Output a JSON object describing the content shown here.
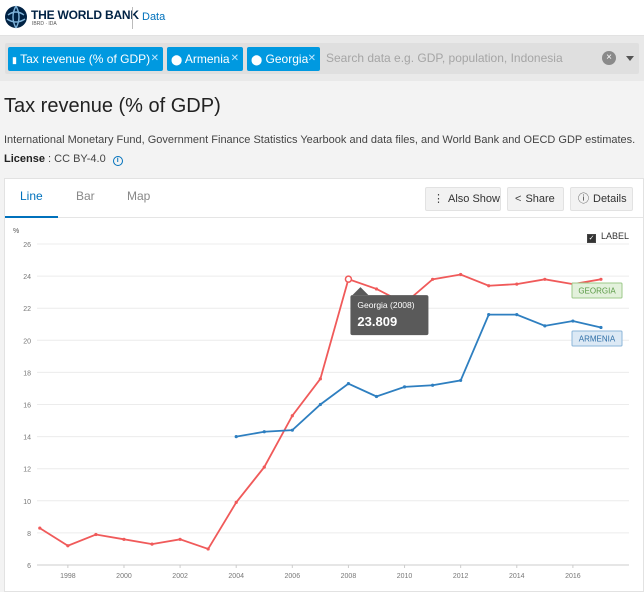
{
  "header": {
    "brand": "THE WORLD BANK",
    "brand_sub": "IBRD · IDA",
    "data_link": "Data"
  },
  "filters": {
    "chips": [
      {
        "icon": "bar-chart-icon",
        "label": "Tax revenue (% of GDP)"
      },
      {
        "icon": "location-pin-icon",
        "label": "Armenia"
      },
      {
        "icon": "location-pin-icon",
        "label": "Georgia"
      }
    ],
    "search_placeholder": "Search data e.g. GDP, population, Indonesia",
    "clear": "×"
  },
  "page": {
    "title": "Tax revenue (% of GDP)",
    "source": "International Monetary Fund, Government Finance Statistics Yearbook and data files, and World Bank and OECD GDP estimates.",
    "license_label": "License",
    "license_value": ": CC BY-4.0"
  },
  "tabs": [
    "Line",
    "Bar",
    "Map"
  ],
  "actions": {
    "also_show": "Also Show",
    "share": "Share",
    "details": "Details"
  },
  "label_toggle": "LABEL",
  "colors": {
    "georgia": "#f05a5a",
    "armenia": "#2e7fc0",
    "accent": "#0071bc"
  },
  "tooltip": {
    "title": "Georgia (2008)",
    "value": "23.809"
  },
  "chart_data": {
    "type": "line",
    "ylabel": "%",
    "ylim": [
      6,
      26
    ],
    "yticks": [
      6,
      8,
      10,
      12,
      14,
      16,
      18,
      20,
      22,
      24,
      26
    ],
    "xticks": [
      1998,
      2000,
      2002,
      2004,
      2006,
      2008,
      2010,
      2012,
      2014,
      2016
    ],
    "xlim": [
      1996.9,
      2018.0
    ],
    "series": [
      {
        "name": "GEORGIA",
        "color": "#f05a5a",
        "x": [
          1997,
          1998,
          1999,
          2000,
          2001,
          2002,
          2003,
          2004,
          2005,
          2006,
          2007,
          2008,
          2009,
          2010,
          2011,
          2012,
          2013,
          2014,
          2015,
          2016,
          2017
        ],
        "values": [
          8.3,
          7.2,
          7.9,
          7.6,
          7.3,
          7.6,
          7.0,
          9.9,
          12.1,
          15.3,
          17.6,
          23.809,
          23.2,
          22.3,
          23.8,
          24.1,
          23.4,
          23.5,
          23.8,
          23.5,
          23.8
        ]
      },
      {
        "name": "ARMENIA",
        "color": "#2e7fc0",
        "x": [
          2004,
          2005,
          2006,
          2007,
          2008,
          2009,
          2010,
          2011,
          2012,
          2013,
          2014,
          2015,
          2016,
          2017
        ],
        "values": [
          14.0,
          14.3,
          14.4,
          16.0,
          17.3,
          16.5,
          17.1,
          17.2,
          17.5,
          21.6,
          21.6,
          20.9,
          21.2,
          20.8
        ]
      }
    ]
  }
}
